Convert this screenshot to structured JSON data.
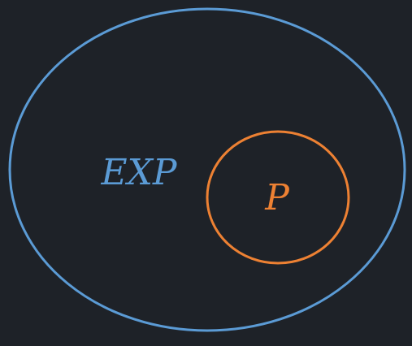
{
  "colors": {
    "background": "#1e2228",
    "outer_set": "#5b9bd5",
    "inner_set": "#ed8133"
  },
  "diagram": {
    "outer_set": {
      "label": "EXP"
    },
    "inner_set": {
      "label": "P"
    }
  }
}
